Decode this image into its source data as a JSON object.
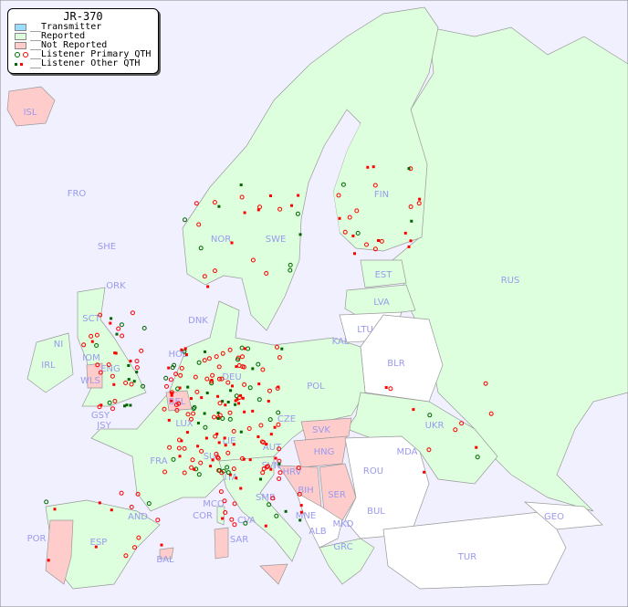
{
  "legend": {
    "title": "JR-370",
    "items": [
      {
        "label": "__Transmitter",
        "color": "#99ddff"
      },
      {
        "label": "__Reported",
        "color": "#ddffdd"
      },
      {
        "label": "__Not Reported",
        "color": "#ffcccc"
      },
      {
        "label": "__Listener Primary QTH",
        "colors": [
          "#006600",
          "#ff0000"
        ]
      },
      {
        "label": "__Listener Other QTH",
        "colors": [
          "#006600",
          "#ff0000"
        ]
      }
    ]
  },
  "colors": {
    "sea": "#f0f0ff",
    "reported": "#ddffdd",
    "not_reported": "#ffcccc",
    "no_data": "#ffffff",
    "label": "#9a9aee",
    "primary_marker": "#ff0000",
    "primary_marker_alt": "#006600"
  },
  "countries": [
    "ISL",
    "FRO",
    "SHE",
    "ORK",
    "NOR",
    "SWE",
    "FIN",
    "EST",
    "LVA",
    "RUS",
    "LTU",
    "KAL",
    "DNK",
    "BLR",
    "POL",
    "HOL",
    "DEU",
    "BEL",
    "LUX",
    "CZE",
    "SVK",
    "UKR",
    "GSY",
    "JSY",
    "FRA",
    "SUI",
    "LIE",
    "AUT",
    "HNG",
    "MDA",
    "SVN",
    "HRV",
    "ROU",
    "ITA",
    "SMR",
    "BIH",
    "SER",
    "BUL",
    "MCO",
    "COR",
    "MNE",
    "CVA",
    "AND",
    "GEO",
    "ALB",
    "MKD",
    "POR",
    "ESP",
    "SAR",
    "BAL",
    "GRC",
    "TUR",
    "IOM",
    "IRL",
    "WLS",
    "NI",
    "SCT",
    "ENG"
  ]
}
